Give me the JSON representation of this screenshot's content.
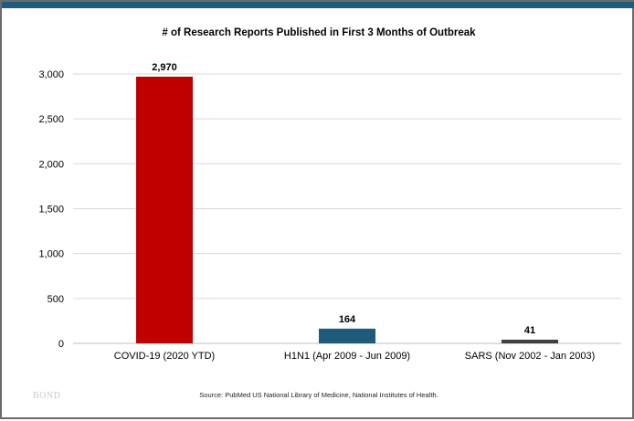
{
  "colors": {
    "top_bar": "#1f5b7a",
    "frame_border": "#6b6b6b",
    "gridline": "#d9d9d9"
  },
  "chart_data": {
    "type": "bar",
    "title": "# of Research Reports Published in First 3 Months of Outbreak",
    "xlabel": "",
    "ylabel": "",
    "categories": [
      "COVID-19 (2020 YTD)",
      "H1N1 (Apr 2009 - Jun 2009)",
      "SARS (Nov 2002 - Jan 2003)"
    ],
    "values": [
      2970,
      164,
      41
    ],
    "value_labels": [
      "2,970",
      "164",
      "41"
    ],
    "bar_colors": [
      "#c00000",
      "#1f5b7a",
      "#404040"
    ],
    "ylim": [
      0,
      3000
    ],
    "yticks": [
      0,
      500,
      1000,
      1500,
      2000,
      2500,
      3000
    ],
    "ytick_labels": [
      "0",
      "500",
      "1,000",
      "1,500",
      "2,000",
      "2,500",
      "3,000"
    ],
    "grid": true,
    "legend": "none"
  },
  "footer": {
    "logo_text": "BOND",
    "source": "Source: PubMed US National Library of Medicine, National Institutes of Health."
  }
}
